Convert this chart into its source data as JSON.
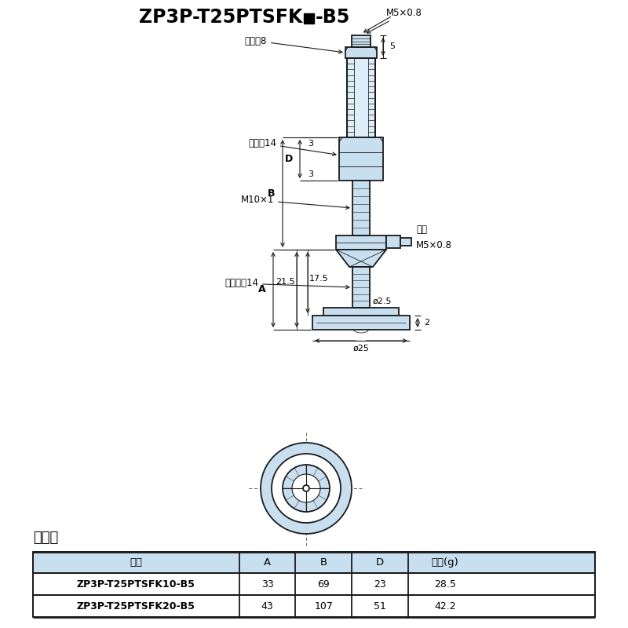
{
  "title_prefix": "ZP3P-T25PTSFK",
  "title_suffix": "-B5",
  "bg_color": "#ffffff",
  "line_color": "#1a1a1a",
  "fill_color": "#c8dff0",
  "fill_color2": "#ddeef8",
  "table_header_fill": "#c8dff0",
  "table_title": "尺寸表",
  "table_columns": [
    "型号",
    "A",
    "B",
    "D",
    "质量(g)"
  ],
  "table_rows": [
    [
      "ZP3P-T25PTSFK10-B5",
      "33",
      "69",
      "23",
      "28.5"
    ],
    [
      "ZP3P-T25PTSFK20-B5",
      "43",
      "107",
      "51",
      "42.2"
    ]
  ],
  "ann_m5_top": "M5×0.8",
  "ann_hex8": "六角对8",
  "ann_hex14": "六角对14",
  "ann_m10": "M10×1",
  "ann_pad": "垫片",
  "ann_m5_bot": "M5×0.8",
  "ann_clamp": "夹持面间14",
  "ann_d25": "ø25",
  "ann_d2p5": "ø2.5",
  "dim_5": "5",
  "dim_3a": "3",
  "dim_3b": "3",
  "dim_2": "2",
  "dim_215": "21.5",
  "dim_175": "17.5",
  "dim_A": "A",
  "dim_B": "B",
  "dim_D": "D"
}
